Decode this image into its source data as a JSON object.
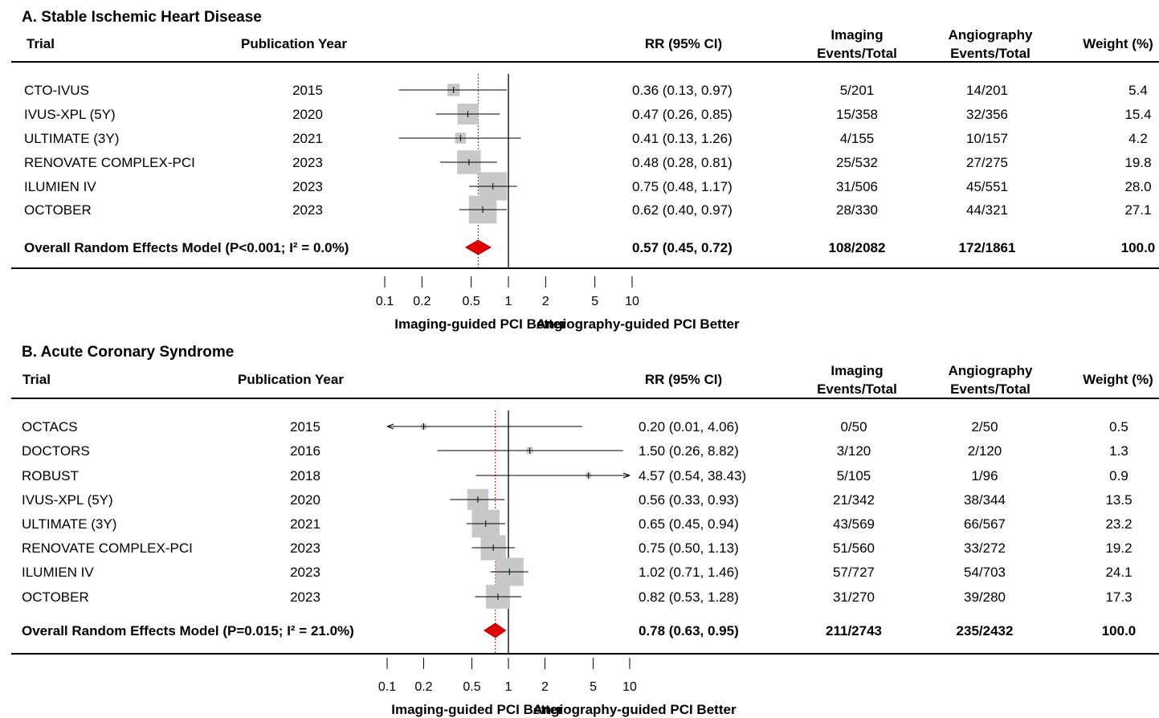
{
  "chart_data": [
    {
      "type": "forest",
      "title": "A. Stable Ischemic Heart Disease",
      "headers": {
        "trial": "Trial",
        "year": "Publication Year",
        "rr": "RR (95% CI)",
        "imaging_line1": "Imaging",
        "imaging_line2": "Events/Total",
        "angio_line1": "Angiography",
        "angio_line2": "Events/Total",
        "weight": "Weight (%)"
      },
      "rows": [
        {
          "trial": "CTO-IVUS",
          "year": "2015",
          "rr": 0.36,
          "lo": 0.13,
          "hi": 0.97,
          "rr_text": "0.36 (0.13, 0.97)",
          "imaging": "5/201",
          "angio": "14/201",
          "weight": "5.4",
          "w": 5.4
        },
        {
          "trial": "IVUS-XPL (5Y)",
          "year": "2020",
          "rr": 0.47,
          "lo": 0.26,
          "hi": 0.85,
          "rr_text": "0.47 (0.26, 0.85)",
          "imaging": "15/358",
          "angio": "32/356",
          "weight": "15.4",
          "w": 15.4
        },
        {
          "trial": "ULTIMATE (3Y)",
          "year": "2021",
          "rr": 0.41,
          "lo": 0.13,
          "hi": 1.26,
          "rr_text": "0.41 (0.13, 1.26)",
          "imaging": "4/155",
          "angio": "10/157",
          "weight": "4.2",
          "w": 4.2
        },
        {
          "trial": "RENOVATE COMPLEX-PCI",
          "year": "2023",
          "rr": 0.48,
          "lo": 0.28,
          "hi": 0.81,
          "rr_text": "0.48 (0.28, 0.81)",
          "imaging": "25/532",
          "angio": "27/275",
          "weight": "19.8",
          "w": 19.8
        },
        {
          "trial": "ILUMIEN IV",
          "year": "2023",
          "rr": 0.75,
          "lo": 0.48,
          "hi": 1.17,
          "rr_text": "0.75 (0.48, 1.17)",
          "imaging": "31/506",
          "angio": "45/551",
          "weight": "28.0",
          "w": 28.0
        },
        {
          "trial": "OCTOBER",
          "year": "2023",
          "rr": 0.62,
          "lo": 0.4,
          "hi": 0.97,
          "rr_text": "0.62 (0.40, 0.97)",
          "imaging": "28/330",
          "angio": "44/321",
          "weight": "27.1",
          "w": 27.1
        }
      ],
      "overall": {
        "label": "Overall Random Effects Model (P<0.001; I² = 0.0%)",
        "rr": 0.57,
        "lo": 0.45,
        "hi": 0.72,
        "rr_text": "0.57 (0.45, 0.72)",
        "imaging": "108/2082",
        "angio": "172/1861",
        "weight": "100.0"
      },
      "x_scale": "log",
      "xlim": [
        0.1,
        10
      ],
      "ticks": [
        0.1,
        0.2,
        0.5,
        1,
        2,
        5,
        10
      ],
      "tick_labels": [
        "0.1",
        "0.2",
        "0.5",
        "1",
        "2",
        "5",
        "10"
      ],
      "favor_left": "Imaging-guided PCI Better",
      "favor_right": "Angiography-guided PCI Better",
      "colors": {
        "box": "#c8c8c8",
        "diamond": "#e00000",
        "reference": "#e00000",
        "line": "#000000"
      }
    },
    {
      "type": "forest",
      "title": "B. Acute Coronary Syndrome",
      "headers": {
        "trial": "Trial",
        "year": "Publication Year",
        "rr": "RR (95% CI)",
        "imaging_line1": "Imaging",
        "imaging_line2": "Events/Total",
        "angio_line1": "Angiography",
        "angio_line2": "Events/Total",
        "weight": "Weight (%)"
      },
      "rows": [
        {
          "trial": "OCTACS",
          "year": "2015",
          "rr": 0.2,
          "lo": 0.01,
          "hi": 4.06,
          "rr_text": "0.20 (0.01, 4.06)",
          "imaging": "0/50",
          "angio": "2/50",
          "weight": "0.5",
          "w": 0.5
        },
        {
          "trial": "DOCTORS",
          "year": "2016",
          "rr": 1.5,
          "lo": 0.26,
          "hi": 8.82,
          "rr_text": "1.50 (0.26, 8.82)",
          "imaging": "3/120",
          "angio": "2/120",
          "weight": "1.3",
          "w": 1.3
        },
        {
          "trial": "ROBUST",
          "year": "2018",
          "rr": 4.57,
          "lo": 0.54,
          "hi": 38.43,
          "rr_text": "4.57 (0.54, 38.43)",
          "imaging": "5/105",
          "angio": "1/96",
          "weight": "0.9",
          "w": 0.9
        },
        {
          "trial": "IVUS-XPL (5Y)",
          "year": "2020",
          "rr": 0.56,
          "lo": 0.33,
          "hi": 0.93,
          "rr_text": "0.56 (0.33, 0.93)",
          "imaging": "21/342",
          "angio": "38/344",
          "weight": "13.5",
          "w": 13.5
        },
        {
          "trial": "ULTIMATE (3Y)",
          "year": "2021",
          "rr": 0.65,
          "lo": 0.45,
          "hi": 0.94,
          "rr_text": "0.65 (0.45, 0.94)",
          "imaging": "43/569",
          "angio": "66/567",
          "weight": "23.2",
          "w": 23.2
        },
        {
          "trial": "RENOVATE COMPLEX-PCI",
          "year": "2023",
          "rr": 0.75,
          "lo": 0.5,
          "hi": 1.13,
          "rr_text": "0.75 (0.50, 1.13)",
          "imaging": "51/560",
          "angio": "33/272",
          "weight": "19.2",
          "w": 19.2
        },
        {
          "trial": "ILUMIEN IV",
          "year": "2023",
          "rr": 1.02,
          "lo": 0.71,
          "hi": 1.46,
          "rr_text": "1.02 (0.71, 1.46)",
          "imaging": "57/727",
          "angio": "54/703",
          "weight": "24.1",
          "w": 24.1
        },
        {
          "trial": "OCTOBER",
          "year": "2023",
          "rr": 0.82,
          "lo": 0.53,
          "hi": 1.28,
          "rr_text": "0.82 (0.53, 1.28)",
          "imaging": "31/270",
          "angio": "39/280",
          "weight": "17.3",
          "w": 17.3
        }
      ],
      "overall": {
        "label": "Overall Random Effects Model (P=0.015; I² = 21.0%)",
        "rr": 0.78,
        "lo": 0.63,
        "hi": 0.95,
        "rr_text": "0.78 (0.63, 0.95)",
        "imaging": "211/2743",
        "angio": "235/2432",
        "weight": "100.0"
      },
      "x_scale": "log",
      "xlim": [
        0.1,
        10
      ],
      "ticks": [
        0.1,
        0.2,
        0.5,
        1,
        2,
        5,
        10
      ],
      "tick_labels": [
        "0.1",
        "0.2",
        "0.5",
        "1",
        "2",
        "5",
        "10"
      ],
      "favor_left": "Imaging-guided PCI Better",
      "favor_right": "Angiography-guided PCI Better",
      "colors": {
        "box": "#c8c8c8",
        "diamond": "#e00000",
        "reference": "#e00000",
        "line": "#000000"
      }
    }
  ]
}
